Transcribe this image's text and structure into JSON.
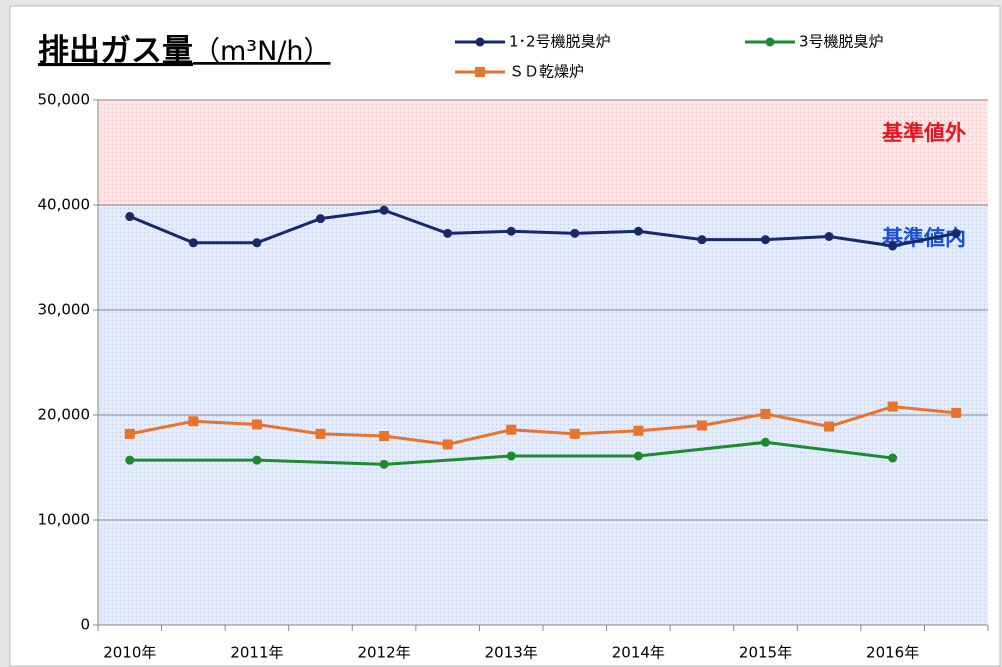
{
  "chart_data": {
    "type": "line",
    "title": "排出ガス量",
    "subtitle": "（m³N/h）",
    "categories": [
      "2010年",
      null,
      "2011年",
      null,
      "2012年",
      null,
      "2013年",
      null,
      "2014年",
      null,
      "2015年",
      null,
      "2016年",
      null
    ],
    "series": [
      {
        "name": "1･2号機脱臭炉",
        "color": "#16296b",
        "marker": "circle",
        "values": [
          38900,
          36400,
          36400,
          38700,
          39500,
          37300,
          37500,
          37300,
          37500,
          36700,
          36700,
          37000,
          36100,
          37300
        ]
      },
      {
        "name": "3号機脱臭炉",
        "color": "#1e8a2e",
        "marker": "circle",
        "connect_gaps": true,
        "values": [
          15700,
          null,
          15700,
          null,
          15300,
          null,
          16100,
          null,
          16100,
          null,
          17400,
          null,
          15900,
          null
        ]
      },
      {
        "name": "ＳＤ乾燥炉",
        "color": "#e8732a",
        "marker": "square",
        "values": [
          18200,
          19400,
          19100,
          18200,
          18000,
          17200,
          18600,
          18200,
          18500,
          19000,
          20100,
          18900,
          20800,
          20200
        ]
      }
    ],
    "zones": [
      {
        "label": "基準値外",
        "from": 40000,
        "to": 50000,
        "color": "#e8141e"
      },
      {
        "label": "基準値内",
        "from": 0,
        "to": 40000,
        "color": "#1c4fd0"
      }
    ],
    "ylim": [
      0,
      50000
    ],
    "yticks": [
      0,
      {
        "value": 10000,
        "label": "10,000"
      },
      {
        "value": 20000,
        "label": "20,000"
      },
      {
        "value": 30000,
        "label": "30,000"
      },
      {
        "value": 40000,
        "label": "40,000"
      },
      {
        "value": 50000,
        "label": "50,000"
      }
    ],
    "grid": true
  }
}
